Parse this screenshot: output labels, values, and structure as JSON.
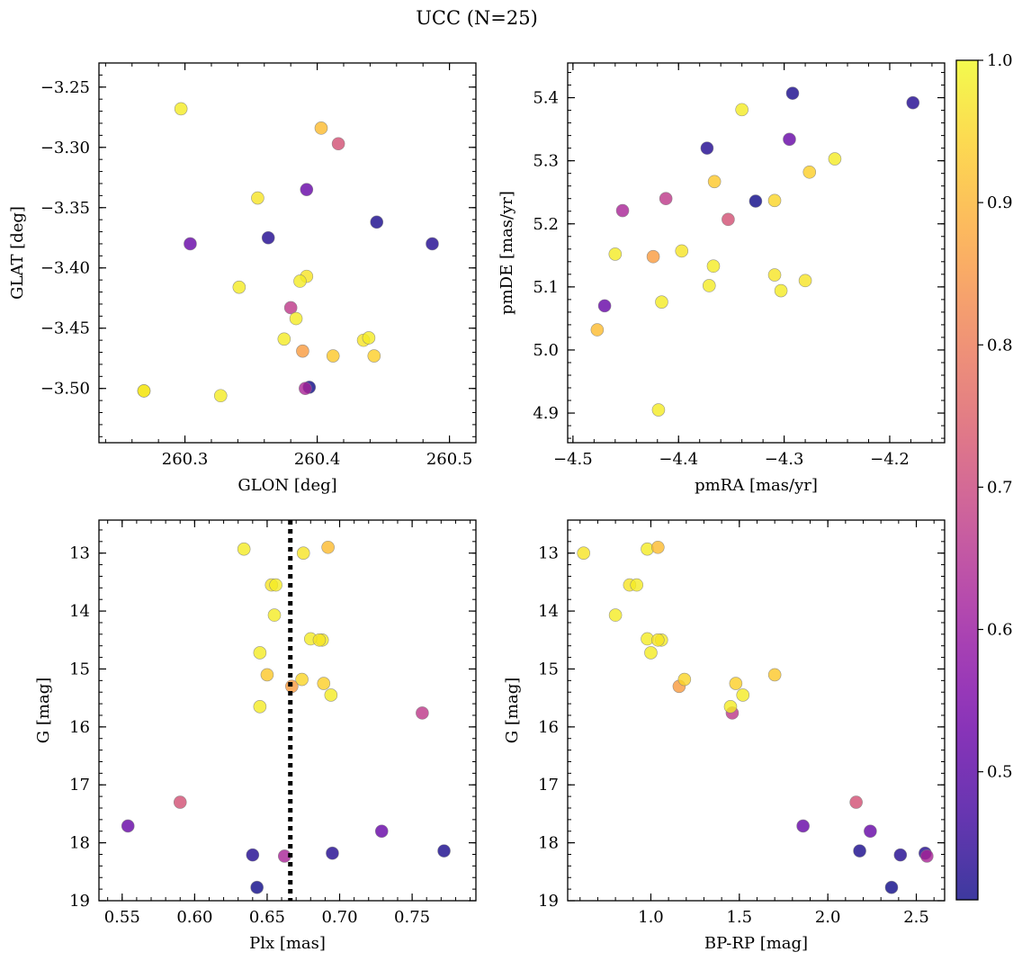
{
  "chart_data": {
    "title": "UCC (N=25)",
    "colorbar": {
      "colormap": "plasma",
      "range": [
        0.41,
        1.0
      ],
      "ticks": [
        "0.5",
        "0.6",
        "0.7",
        "0.8",
        "0.9",
        "1.0"
      ],
      "tick_values": [
        0.5,
        0.6,
        0.7,
        0.8,
        0.9,
        1.0
      ]
    },
    "colors": {
      "plasma_stops": [
        "#0d0887",
        "#46039f",
        "#7201a8",
        "#9c179e",
        "#bd3786",
        "#d8576b",
        "#ed7953",
        "#fb9f3a",
        "#fdca26",
        "#f0f921"
      ],
      "marker_edge": "#7f7f7f",
      "dotted_line": "#000000"
    },
    "marker_alpha": 0.8,
    "stars": [
      {
        "glon": 260.297,
        "glat": -3.268,
        "pmra": -4.34,
        "pmde": 5.381,
        "plx": 0.634,
        "g": 12.93,
        "bprp": 0.98,
        "p": 0.98
      },
      {
        "glon": 260.403,
        "glat": -3.284,
        "pmra": -4.477,
        "pmde": 5.032,
        "plx": 0.692,
        "g": 12.9,
        "bprp": 1.04,
        "p": 0.91
      },
      {
        "glon": 260.416,
        "glat": -3.297,
        "pmra": -4.353,
        "pmde": 5.207,
        "plx": 0.59,
        "g": 17.3,
        "bprp": 2.16,
        "p": 0.72
      },
      {
        "glon": 260.355,
        "glat": -3.342,
        "pmra": -4.309,
        "pmde": 5.119,
        "plx": 0.675,
        "g": 13.0,
        "bprp": 0.62,
        "p": 0.97
      },
      {
        "glon": 260.392,
        "glat": -3.335,
        "pmra": -4.295,
        "pmde": 5.334,
        "plx": 0.729,
        "g": 17.8,
        "bprp": 2.24,
        "p": 0.52
      },
      {
        "glon": 260.445,
        "glat": -3.362,
        "pmra": -4.292,
        "pmde": 5.407,
        "plx": 0.772,
        "g": 18.14,
        "bprp": 2.18,
        "p": 0.42
      },
      {
        "glon": 260.304,
        "glat": -3.38,
        "pmra": -4.47,
        "pmde": 5.07,
        "plx": 0.554,
        "g": 17.71,
        "bprp": 1.86,
        "p": 0.52
      },
      {
        "glon": 260.363,
        "glat": -3.375,
        "pmra": -4.373,
        "pmde": 5.32,
        "plx": 0.695,
        "g": 18.18,
        "bprp": 2.55,
        "p": 0.43
      },
      {
        "glon": 260.487,
        "glat": -3.38,
        "pmra": -4.178,
        "pmde": 5.392,
        "plx": 0.64,
        "g": 18.21,
        "bprp": 2.41,
        "p": 0.43
      },
      {
        "glon": 260.392,
        "glat": -3.407,
        "pmra": -4.397,
        "pmde": 5.157,
        "plx": 0.653,
        "g": 13.55,
        "bprp": 0.88,
        "p": 0.97
      },
      {
        "glon": 260.341,
        "glat": -3.416,
        "pmra": -4.371,
        "pmde": 5.102,
        "plx": 0.656,
        "g": 13.55,
        "bprp": 0.92,
        "p": 0.98
      },
      {
        "glon": 260.387,
        "glat": -3.411,
        "pmra": -4.367,
        "pmde": 5.133,
        "plx": 0.655,
        "g": 14.07,
        "bprp": 0.8,
        "p": 0.98
      },
      {
        "glon": 260.38,
        "glat": -3.433,
        "pmra": -4.412,
        "pmde": 5.24,
        "plx": 0.757,
        "g": 15.76,
        "bprp": 1.46,
        "p": 0.67
      },
      {
        "glon": 260.384,
        "glat": -3.442,
        "pmra": -4.416,
        "pmde": 5.076,
        "plx": 0.688,
        "g": 14.5,
        "bprp": 1.06,
        "p": 0.98
      },
      {
        "glon": 260.375,
        "glat": -3.459,
        "pmra": -4.46,
        "pmde": 5.152,
        "plx": 0.68,
        "g": 14.48,
        "bprp": 0.98,
        "p": 0.98
      },
      {
        "glon": 260.435,
        "glat": -3.46,
        "pmra": -4.28,
        "pmde": 5.11,
        "plx": 0.686,
        "g": 14.5,
        "bprp": 1.04,
        "p": 0.97
      },
      {
        "glon": 260.439,
        "glat": -3.458,
        "pmra": -4.303,
        "pmde": 5.094,
        "plx": 0.645,
        "g": 14.72,
        "bprp": 1.0,
        "p": 0.98
      },
      {
        "glon": 260.389,
        "glat": -3.469,
        "pmra": -4.424,
        "pmde": 5.148,
        "plx": 0.667,
        "g": 15.3,
        "bprp": 1.16,
        "p": 0.86
      },
      {
        "glon": 260.412,
        "glat": -3.473,
        "pmra": -4.366,
        "pmde": 5.267,
        "plx": 0.65,
        "g": 15.1,
        "bprp": 1.7,
        "p": 0.93
      },
      {
        "glon": 260.443,
        "glat": -3.473,
        "pmra": -4.276,
        "pmde": 5.282,
        "plx": 0.689,
        "g": 15.25,
        "bprp": 1.48,
        "p": 0.94
      },
      {
        "glon": 260.269,
        "glat": -3.502,
        "pmra": -4.309,
        "pmde": 5.237,
        "plx": 0.674,
        "g": 15.18,
        "bprp": 1.19,
        "p": 0.95
      },
      {
        "glon": 260.269,
        "glat": -3.502,
        "pmra": -4.252,
        "pmde": 5.303,
        "plx": 0.694,
        "g": 15.45,
        "bprp": 1.52,
        "p": 0.98
      },
      {
        "glon": 260.327,
        "glat": -3.506,
        "pmra": -4.419,
        "pmde": 4.905,
        "plx": 0.645,
        "g": 15.65,
        "bprp": 1.45,
        "p": 0.98
      },
      {
        "glon": 260.394,
        "glat": -3.499,
        "pmra": -4.327,
        "pmde": 5.236,
        "plx": 0.643,
        "g": 18.77,
        "bprp": 2.36,
        "p": 0.41
      },
      {
        "glon": 260.391,
        "glat": -3.5,
        "pmra": -4.453,
        "pmde": 5.221,
        "plx": 0.662,
        "g": 18.23,
        "bprp": 2.56,
        "p": 0.63
      }
    ],
    "panels": [
      {
        "id": "sky",
        "type": "scatter",
        "x_key": "glon",
        "y_key": "glat",
        "xlabel": "GLON [deg]",
        "ylabel": "GLAT [deg]",
        "xlim": [
          260.235,
          260.52
        ],
        "ylim": [
          -3.545,
          -3.23
        ],
        "y_inverted": false,
        "xticks": [
          260.3,
          260.4,
          260.5
        ],
        "xticklabels": [
          "260.3",
          "260.4",
          "260.5"
        ],
        "yticks": [
          -3.25,
          -3.3,
          -3.35,
          -3.4,
          -3.45,
          -3.5
        ],
        "yticklabels": [
          "−3.25",
          "−3.30",
          "−3.35",
          "−3.40",
          "−3.45",
          "−3.50"
        ],
        "xminor": 0.02,
        "yminor": 0.01
      },
      {
        "id": "pm",
        "type": "scatter",
        "x_key": "pmra",
        "y_key": "pmde",
        "xlabel": "pmRA [mas/yr]",
        "ylabel": "pmDE [mas/yr]",
        "xlim": [
          -4.505,
          -4.148
        ],
        "ylim": [
          4.853,
          5.455
        ],
        "y_inverted": false,
        "xticks": [
          -4.5,
          -4.4,
          -4.3,
          -4.2
        ],
        "xticklabels": [
          "−4.5",
          "−4.4",
          "−4.3",
          "−4.2"
        ],
        "yticks": [
          4.9,
          5.0,
          5.1,
          5.2,
          5.3,
          5.4
        ],
        "yticklabels": [
          "4.9",
          "5.0",
          "5.1",
          "5.2",
          "5.3",
          "5.4"
        ],
        "xminor": 0.02,
        "yminor": 0.02
      },
      {
        "id": "plx",
        "type": "scatter",
        "x_key": "plx",
        "y_key": "g",
        "xlabel": "Plx [mas]",
        "ylabel": "G [mag]",
        "xlim": [
          0.534,
          0.794
        ],
        "ylim": [
          19.0,
          12.43
        ],
        "y_inverted": true,
        "xticks": [
          0.55,
          0.6,
          0.65,
          0.7,
          0.75
        ],
        "xticklabels": [
          "0.55",
          "0.60",
          "0.65",
          "0.70",
          "0.75"
        ],
        "yticks": [
          13,
          14,
          15,
          16,
          17,
          18,
          19
        ],
        "yticklabels": [
          "13",
          "14",
          "15",
          "16",
          "17",
          "18",
          "19"
        ],
        "xminor": 0.01,
        "yminor": 0.2,
        "vline": {
          "x": 0.666,
          "style": "dotted"
        }
      },
      {
        "id": "cmd",
        "type": "scatter",
        "x_key": "bprp",
        "y_key": "g",
        "xlabel": "BP-RP [mag]",
        "ylabel": "G [mag]",
        "xlim": [
          0.53,
          2.66
        ],
        "ylim": [
          19.0,
          12.43
        ],
        "y_inverted": true,
        "xticks": [
          1.0,
          1.5,
          2.0,
          2.5
        ],
        "xticklabels": [
          "1.0",
          "1.5",
          "2.0",
          "2.5"
        ],
        "yticks": [
          13,
          14,
          15,
          16,
          17,
          18,
          19
        ],
        "yticklabels": [
          "13",
          "14",
          "15",
          "16",
          "17",
          "18",
          "19"
        ],
        "xminor": 0.1,
        "yminor": 0.2
      }
    ]
  }
}
